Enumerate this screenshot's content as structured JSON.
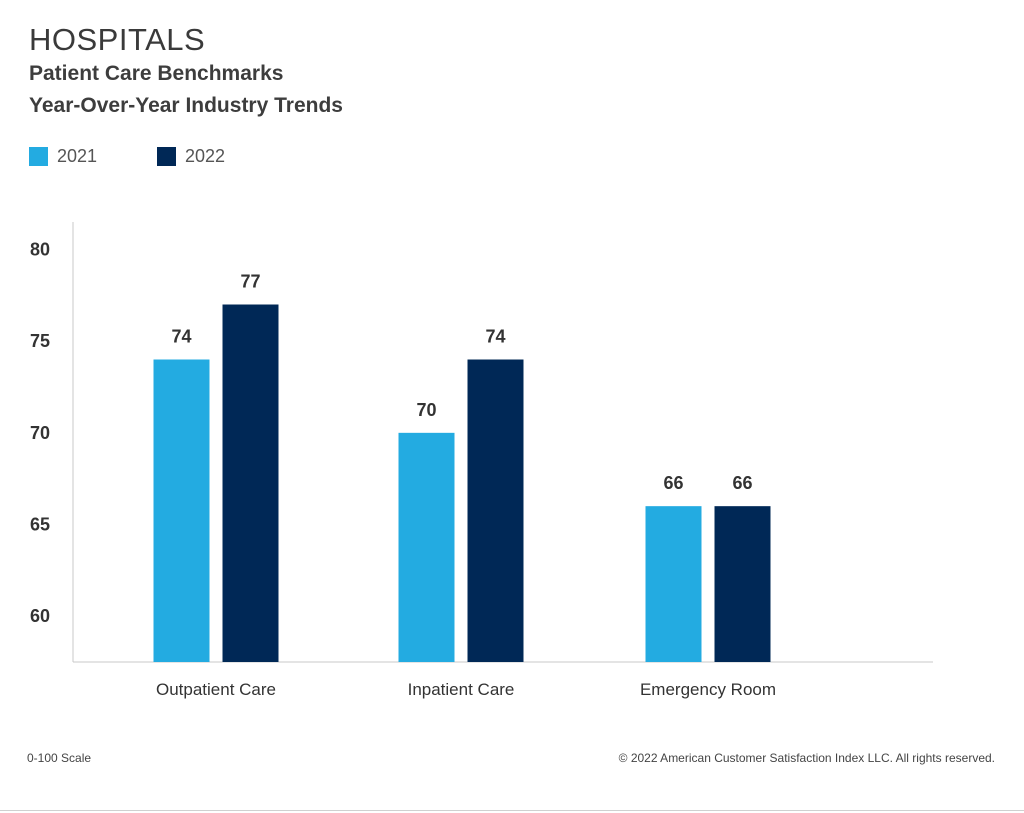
{
  "header": {
    "title": "HOSPITALS",
    "subtitle_line1": "Patient Care Benchmarks",
    "subtitle_line2": "Year-Over-Year Industry Trends"
  },
  "legend": {
    "items": [
      {
        "label": "2021",
        "color": "#23abe1"
      },
      {
        "label": "2022",
        "color": "#002856"
      }
    ]
  },
  "footer": {
    "scale_note": "0-100 Scale",
    "copyright": "© 2022 American Customer Satisfaction Index LLC. All rights reserved."
  },
  "chart_data": {
    "type": "bar",
    "title": "HOSPITALS",
    "subtitle": "Patient Care Benchmarks Year-Over-Year Industry Trends",
    "categories": [
      "Outpatient Care",
      "Inpatient Care",
      "Emergency Room"
    ],
    "series": [
      {
        "name": "2021",
        "values": [
          74,
          70,
          66
        ],
        "color": "#23abe1"
      },
      {
        "name": "2022",
        "values": [
          77,
          74,
          66
        ],
        "color": "#002856"
      }
    ],
    "y_ticks": [
      60,
      65,
      70,
      75,
      80
    ],
    "ylim": [
      57.5,
      81.5
    ],
    "xlabel": "",
    "ylabel": "",
    "grid": false,
    "legend_position": "top-left",
    "data_labels": true
  }
}
